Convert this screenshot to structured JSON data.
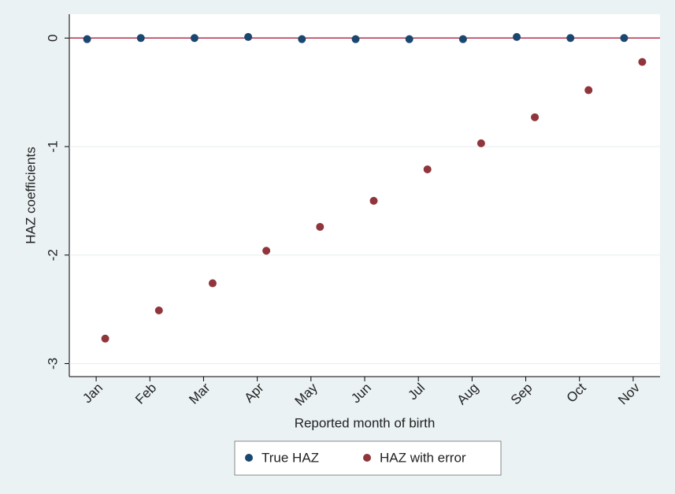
{
  "chart_data": {
    "type": "dot",
    "x_label": "Reported month of birth",
    "y_label": "HAZ coefficients",
    "categories": [
      "Jan",
      "Feb",
      "Mar",
      "Apr",
      "May",
      "Jun",
      "Jul",
      "Aug",
      "Sep",
      "Oct",
      "Nov"
    ],
    "series": [
      {
        "name": "True HAZ",
        "color": "#1a476f",
        "values": [
          -0.01,
          0,
          0,
          0.01,
          -0.01,
          -0.01,
          -0.01,
          -0.01,
          0.01,
          0,
          0
        ]
      },
      {
        "name": "HAZ with error",
        "color": "#90353b",
        "values": [
          -2.77,
          -2.51,
          -2.26,
          -1.96,
          -1.74,
          -1.5,
          -1.21,
          -0.97,
          -0.73,
          -0.48,
          -0.22
        ]
      }
    ],
    "ylim": [
      -3.12,
      0.22
    ],
    "yticks": [
      0,
      -1,
      -2,
      -3
    ],
    "grid": true,
    "reference_line": {
      "value": 0,
      "color": "#b0324a"
    },
    "legend": "bottom"
  }
}
